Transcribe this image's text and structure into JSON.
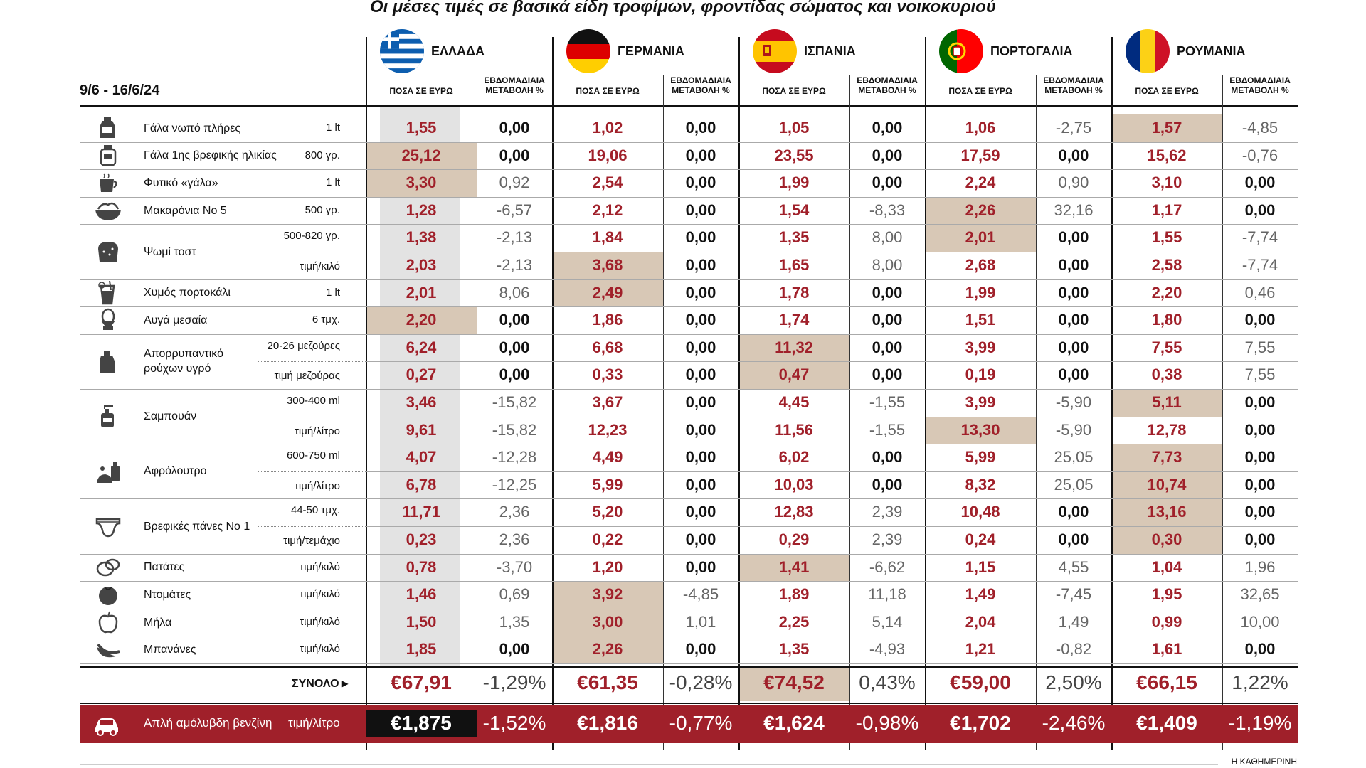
{
  "title": "Οι μέσες τιμές σε βασικά είδη τροφίμων, φροντίδας σώματος και νοικοκυριού",
  "date_range": "9/6 - 16/6/24",
  "col_price_label": "ΠΟΣΑ ΣΕ ΕΥΡΩ",
  "col_change_label_1": "ΕΒΔΟΜΑΔΙΑΙΑ",
  "col_change_label_2": "ΜΕΤΑΒΟΛΗ %",
  "total_label": "ΣΥΝΟΛΟ ▸",
  "fuel_label": "Απλή αμόλυβδη βενζίνη",
  "fuel_unit": "τιμή/λίτρο",
  "source": "Η ΚΑΘΗΜΕΡΙΝΗ",
  "colors": {
    "price_red": "#a0202a",
    "highlight": "#d8c8b6",
    "fuel_bar": "#a0202a"
  },
  "chart_data": {
    "type": "table",
    "title": "Οι μέσες τιμές σε βασικά είδη τροφίμων, φροντίδας σώματος και νοικοκυριού",
    "countries": [
      {
        "name": "ΕΛΛΑΔΑ",
        "flag": "greece-flag-icon",
        "total": "€67,91",
        "total_change": "-1,29%",
        "fuel": "€1,875",
        "fuel_change": "-1,52%"
      },
      {
        "name": "ΓΕΡΜΑΝΙΑ",
        "flag": "germany-flag-icon",
        "total": "€61,35",
        "total_change": "-0,28%",
        "fuel": "€1,816",
        "fuel_change": "-0,77%"
      },
      {
        "name": "ΙΣΠΑΝΙΑ",
        "flag": "spain-flag-icon",
        "total": "€74,52",
        "total_change": "0,43%",
        "fuel": "€1,624",
        "fuel_change": "-0,98%"
      },
      {
        "name": "ΠΟΡΤΟΓΑΛΙΑ",
        "flag": "portugal-flag-icon",
        "total": "€59,00",
        "total_change": "2,50%",
        "fuel": "€1,702",
        "fuel_change": "-2,46%"
      },
      {
        "name": "ΡΟΥΜΑΝΙΑ",
        "flag": "romania-flag-icon",
        "total": "€66,15",
        "total_change": "1,22%",
        "fuel": "€1,409",
        "fuel_change": "-1,19%"
      }
    ],
    "rows": [
      {
        "product": "Γάλα νωπό πλήρες",
        "unit": "1 lt",
        "icon": "milk-carton-icon",
        "values": [
          [
            "1,55",
            "0,00"
          ],
          [
            "1,02",
            "0,00"
          ],
          [
            "1,05",
            "0,00"
          ],
          [
            "1,06",
            "-2,75"
          ],
          [
            "1,57",
            "-4,85"
          ]
        ],
        "highlight": [
          4
        ]
      },
      {
        "product": "Γάλα 1ης βρεφικής ηλικίας",
        "unit": "800 γρ.",
        "icon": "baby-formula-icon",
        "values": [
          [
            "25,12",
            "0,00"
          ],
          [
            "19,06",
            "0,00"
          ],
          [
            "23,55",
            "0,00"
          ],
          [
            "17,59",
            "0,00"
          ],
          [
            "15,62",
            "-0,76"
          ]
        ],
        "highlight": [
          0
        ]
      },
      {
        "product": "Φυτικό «γάλα»",
        "unit": "1 lt",
        "icon": "cup-icon",
        "values": [
          [
            "3,30",
            "0,92"
          ],
          [
            "2,54",
            "0,00"
          ],
          [
            "1,99",
            "0,00"
          ],
          [
            "2,24",
            "0,90"
          ],
          [
            "3,10",
            "0,00"
          ]
        ],
        "highlight": [
          0
        ]
      },
      {
        "product": "Μακαρόνια Νο 5",
        "unit": "500 γρ.",
        "icon": "pasta-bowl-icon",
        "values": [
          [
            "1,28",
            "-6,57"
          ],
          [
            "2,12",
            "0,00"
          ],
          [
            "1,54",
            "-8,33"
          ],
          [
            "2,26",
            "32,16"
          ],
          [
            "1,17",
            "0,00"
          ]
        ],
        "highlight": [
          3
        ]
      },
      {
        "product": "Ψωμί τοστ",
        "unit": "500-820 γρ.",
        "icon": "bread-icon",
        "values": [
          [
            "1,38",
            "-2,13"
          ],
          [
            "1,84",
            "0,00"
          ],
          [
            "1,35",
            "8,00"
          ],
          [
            "2,01",
            "0,00"
          ],
          [
            "1,55",
            "-7,74"
          ]
        ],
        "highlight": [
          3
        ]
      },
      {
        "product": "",
        "unit": "τιμή/κιλό",
        "icon": "",
        "values": [
          [
            "2,03",
            "-2,13"
          ],
          [
            "3,68",
            "0,00"
          ],
          [
            "1,65",
            "8,00"
          ],
          [
            "2,68",
            "0,00"
          ],
          [
            "2,58",
            "-7,74"
          ]
        ],
        "highlight": [
          1
        ]
      },
      {
        "product": "Χυμός πορτοκάλι",
        "unit": "1 lt",
        "icon": "juice-glass-icon",
        "values": [
          [
            "2,01",
            "8,06"
          ],
          [
            "2,49",
            "0,00"
          ],
          [
            "1,78",
            "0,00"
          ],
          [
            "1,99",
            "0,00"
          ],
          [
            "2,20",
            "0,46"
          ]
        ],
        "highlight": [
          1
        ]
      },
      {
        "product": "Αυγά μεσαία",
        "unit": "6 τμχ.",
        "icon": "egg-cup-icon",
        "values": [
          [
            "2,20",
            "0,00"
          ],
          [
            "1,86",
            "0,00"
          ],
          [
            "1,74",
            "0,00"
          ],
          [
            "1,51",
            "0,00"
          ],
          [
            "1,80",
            "0,00"
          ]
        ],
        "highlight": [
          0
        ]
      },
      {
        "product": "Απορρυπαντικό ρούχων υγρό",
        "unit": "20-26 μεζούρες",
        "icon": "detergent-bottle-icon",
        "values": [
          [
            "6,24",
            "0,00"
          ],
          [
            "6,68",
            "0,00"
          ],
          [
            "11,32",
            "0,00"
          ],
          [
            "3,99",
            "0,00"
          ],
          [
            "7,55",
            "7,55"
          ]
        ],
        "highlight": [
          2
        ]
      },
      {
        "product": "",
        "unit": "τιμή μεζούρας",
        "icon": "",
        "values": [
          [
            "0,27",
            "0,00"
          ],
          [
            "0,33",
            "0,00"
          ],
          [
            "0,47",
            "0,00"
          ],
          [
            "0,19",
            "0,00"
          ],
          [
            "0,38",
            "7,55"
          ]
        ],
        "highlight": [
          2
        ]
      },
      {
        "product": "Σαμπουάν",
        "unit": "300-400 ml",
        "icon": "shampoo-bottle-icon",
        "values": [
          [
            "3,46",
            "-15,82"
          ],
          [
            "3,67",
            "0,00"
          ],
          [
            "4,45",
            "-1,55"
          ],
          [
            "3,99",
            "-5,90"
          ],
          [
            "5,11",
            "0,00"
          ]
        ],
        "highlight": [
          4
        ]
      },
      {
        "product": "",
        "unit": "τιμή/λίτρο",
        "icon": "",
        "values": [
          [
            "9,61",
            "-15,82"
          ],
          [
            "12,23",
            "0,00"
          ],
          [
            "11,56",
            "-1,55"
          ],
          [
            "13,30",
            "-5,90"
          ],
          [
            "12,78",
            "0,00"
          ]
        ],
        "highlight": [
          3
        ]
      },
      {
        "product": "Αφρόλουτρο",
        "unit": "600-750 ml",
        "icon": "shower-gel-icon",
        "values": [
          [
            "4,07",
            "-12,28"
          ],
          [
            "4,49",
            "0,00"
          ],
          [
            "6,02",
            "0,00"
          ],
          [
            "5,99",
            "25,05"
          ],
          [
            "7,73",
            "0,00"
          ]
        ],
        "highlight": [
          4
        ]
      },
      {
        "product": "",
        "unit": "τιμή/λίτρο",
        "icon": "",
        "values": [
          [
            "6,78",
            "-12,25"
          ],
          [
            "5,99",
            "0,00"
          ],
          [
            "10,03",
            "0,00"
          ],
          [
            "8,32",
            "25,05"
          ],
          [
            "10,74",
            "0,00"
          ]
        ],
        "highlight": [
          4
        ]
      },
      {
        "product": "Βρεφικές πάνες Νο 1",
        "unit": "44-50 τμχ.",
        "icon": "diaper-icon",
        "values": [
          [
            "11,71",
            "2,36"
          ],
          [
            "5,20",
            "0,00"
          ],
          [
            "12,83",
            "2,39"
          ],
          [
            "10,48",
            "0,00"
          ],
          [
            "13,16",
            "0,00"
          ]
        ],
        "highlight": [
          4
        ]
      },
      {
        "product": "",
        "unit": "τιμή/τεμάχιο",
        "icon": "",
        "values": [
          [
            "0,23",
            "2,36"
          ],
          [
            "0,22",
            "0,00"
          ],
          [
            "0,29",
            "2,39"
          ],
          [
            "0,24",
            "0,00"
          ],
          [
            "0,30",
            "0,00"
          ]
        ],
        "highlight": [
          4
        ]
      },
      {
        "product": "Πατάτες",
        "unit": "τιμή/κιλό",
        "icon": "potato-icon",
        "values": [
          [
            "0,78",
            "-3,70"
          ],
          [
            "1,20",
            "0,00"
          ],
          [
            "1,41",
            "-6,62"
          ],
          [
            "1,15",
            "4,55"
          ],
          [
            "1,04",
            "1,96"
          ]
        ],
        "highlight": [
          2
        ]
      },
      {
        "product": "Ντομάτες",
        "unit": "τιμή/κιλό",
        "icon": "tomato-icon",
        "values": [
          [
            "1,46",
            "0,69"
          ],
          [
            "3,92",
            "-4,85"
          ],
          [
            "1,89",
            "11,18"
          ],
          [
            "1,49",
            "-7,45"
          ],
          [
            "1,95",
            "32,65"
          ]
        ],
        "highlight": [
          1
        ]
      },
      {
        "product": "Μήλα",
        "unit": "τιμή/κιλό",
        "icon": "apple-icon",
        "values": [
          [
            "1,50",
            "1,35"
          ],
          [
            "3,00",
            "1,01"
          ],
          [
            "2,25",
            "5,14"
          ],
          [
            "2,04",
            "1,49"
          ],
          [
            "0,99",
            "10,00"
          ]
        ],
        "highlight": [
          1
        ]
      },
      {
        "product": "Μπανάνες",
        "unit": "τιμή/κιλό",
        "icon": "banana-icon",
        "values": [
          [
            "1,85",
            "0,00"
          ],
          [
            "2,26",
            "0,00"
          ],
          [
            "1,35",
            "-4,93"
          ],
          [
            "1,21",
            "-0,82"
          ],
          [
            "1,61",
            "0,00"
          ]
        ],
        "highlight": [
          1
        ]
      }
    ],
    "total_highlight": [
      2
    ]
  }
}
